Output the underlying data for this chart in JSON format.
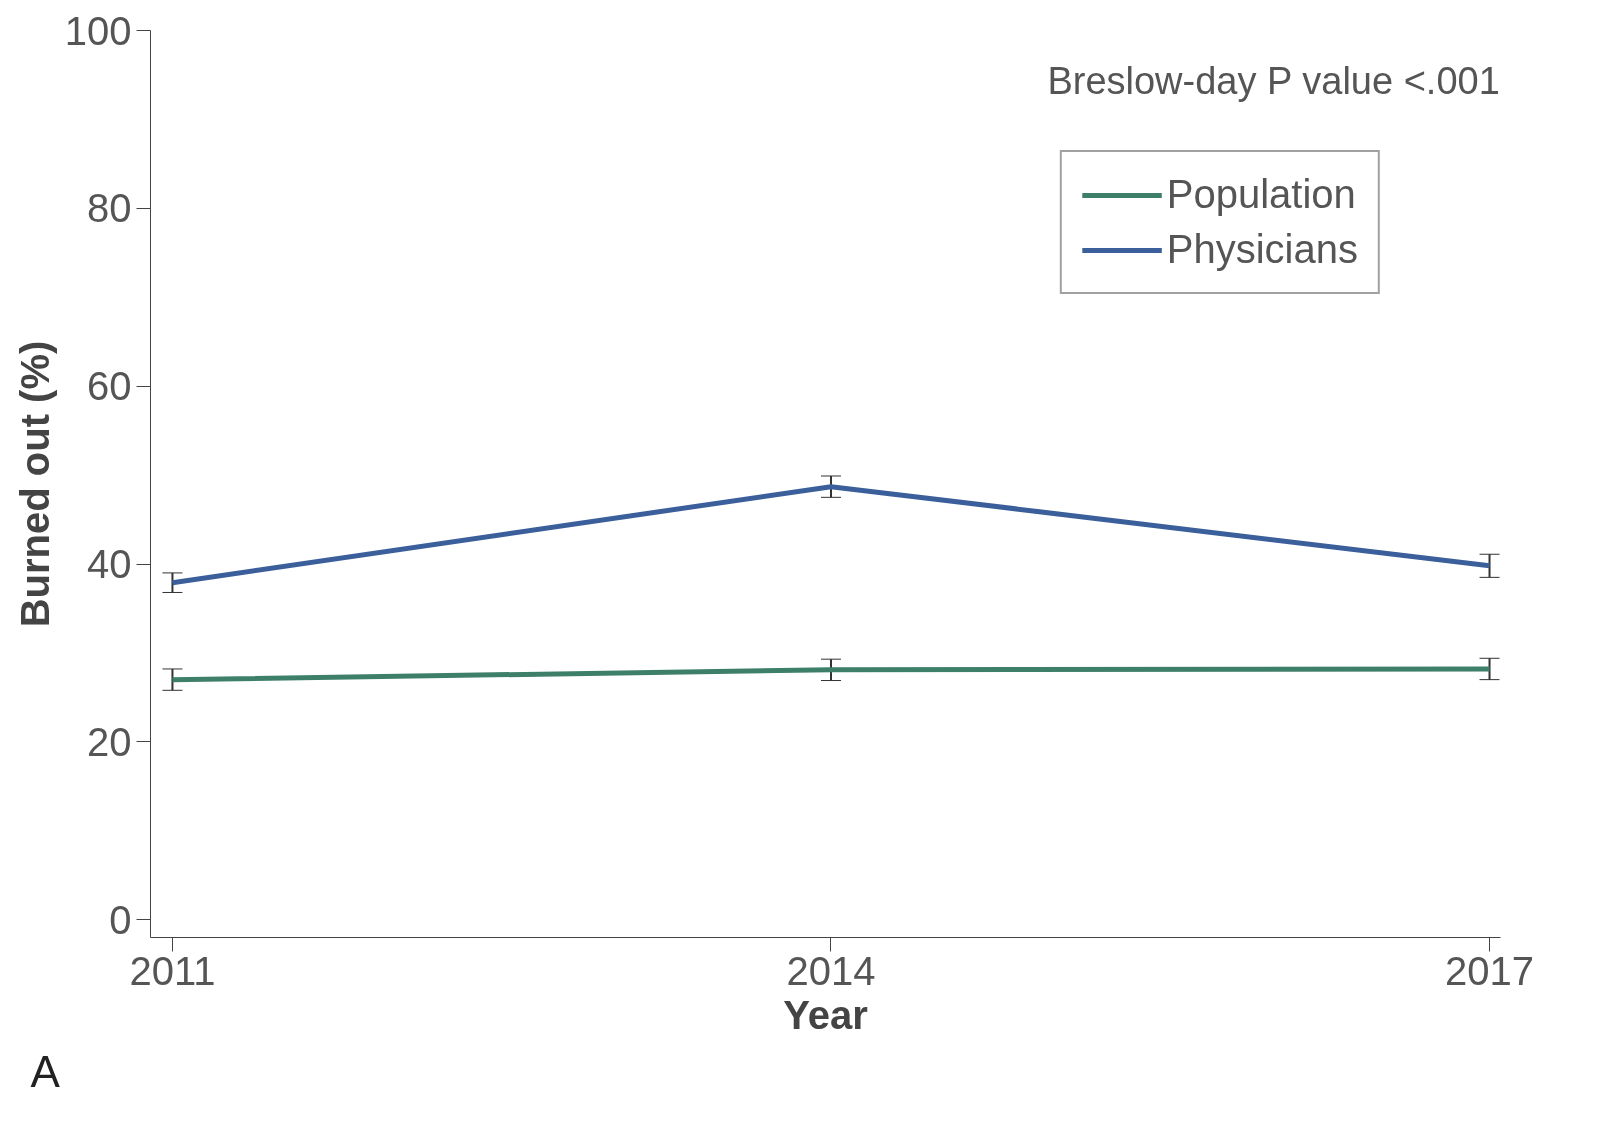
{
  "chart_data": {
    "type": "line",
    "xlabel": "Year",
    "ylabel": "Burned out (%)",
    "x": [
      2011,
      2014,
      2017
    ],
    "series": [
      {
        "name": "Population",
        "color": "#3e7f6a",
        "values": [
          27.0,
          28.1,
          28.2
        ],
        "errors": [
          1.2,
          1.2,
          1.2
        ]
      },
      {
        "name": "Physicians",
        "color": "#3b5f9a",
        "values": [
          37.9,
          48.7,
          39.8
        ],
        "errors": [
          1.1,
          1.2,
          1.3
        ]
      }
    ],
    "xlim": [
      2010.9,
      2017.05
    ],
    "xticks": [
      2011,
      2014,
      2017
    ],
    "ylim": [
      -2,
      100
    ],
    "yticks": [
      0,
      20,
      40,
      60,
      80,
      100
    ],
    "annotations": [
      "Breslow-day P value <.001",
      "A"
    ],
    "legend": "top right",
    "grid": false,
    "marker": "none",
    "line_style": "solid"
  }
}
